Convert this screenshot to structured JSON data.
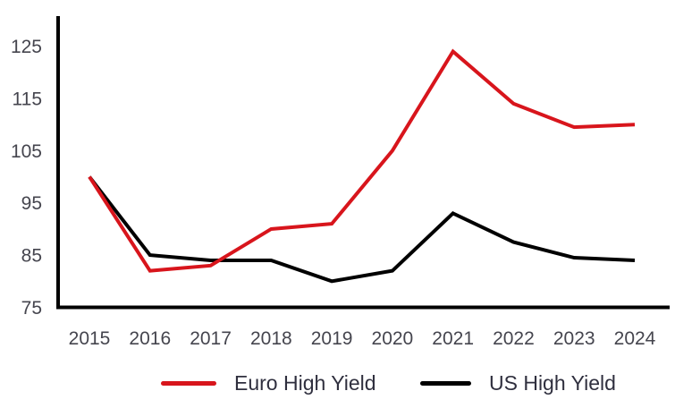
{
  "chart_data": {
    "type": "line",
    "title": "",
    "x": [
      2015,
      2016,
      2017,
      2018,
      2019,
      2020,
      2021,
      2022,
      2023,
      2024
    ],
    "series": [
      {
        "name": "Euro High Yield",
        "color": "#d8151c",
        "values": [
          100,
          82,
          83,
          90,
          91,
          105,
          124,
          114,
          109.5,
          110
        ]
      },
      {
        "name": "US High Yield",
        "color": "#000000",
        "values": [
          100,
          85,
          84,
          84,
          80,
          82,
          93,
          87.5,
          84.5,
          84
        ]
      }
    ],
    "ylim": [
      75,
      125
    ],
    "yticks": [
      75,
      85,
      95,
      105,
      115,
      125
    ],
    "grid": false,
    "legend_position": "bottom"
  },
  "colors": {
    "background": "#ffffff",
    "axis": "#000000",
    "tick_text": "#45454e",
    "legend_text": "#2f2f3e"
  }
}
